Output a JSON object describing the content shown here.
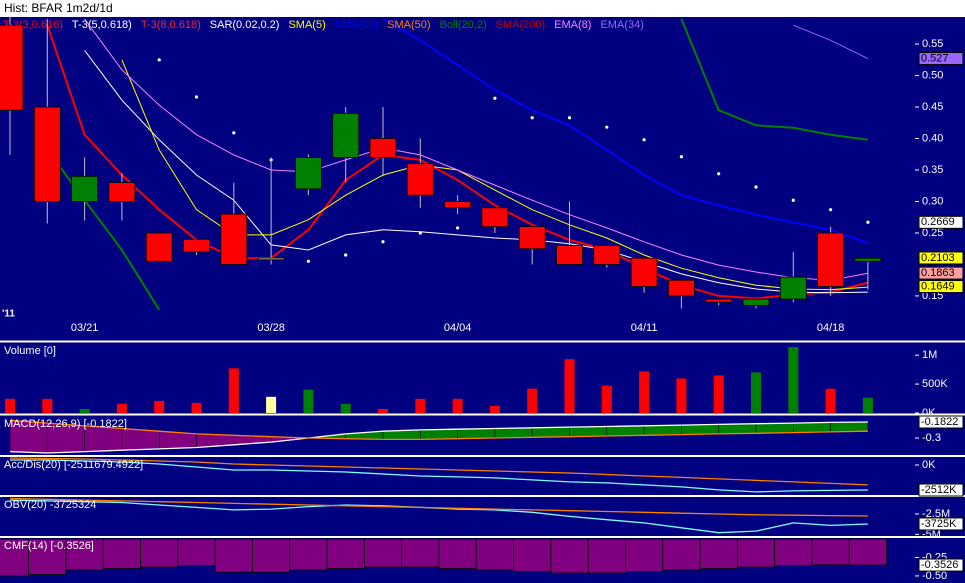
{
  "chart_data": [
    {
      "type": "candlestick",
      "title": "Hist: BFAR 1m2d/1d",
      "annotation": "'11",
      "categories": [
        null,
        null,
        "03/21",
        null,
        null,
        null,
        null,
        "03/28",
        null,
        null,
        null,
        null,
        "04/04",
        null,
        null,
        null,
        null,
        "04/11",
        null,
        null,
        null,
        null,
        "04/18",
        null
      ],
      "open": [
        0.58,
        0.45,
        0.3,
        0.33,
        0.25,
        0.24,
        0.28,
        0.21,
        0.32,
        0.37,
        0.4,
        0.36,
        0.3,
        0.29,
        0.26,
        0.23,
        0.23,
        0.21,
        0.175,
        0.145,
        0.135,
        0.145,
        0.25,
        0.205
      ],
      "high": [
        0.593,
        0.59,
        0.37,
        0.345,
        0.25,
        0.24,
        0.33,
        0.37,
        0.375,
        0.45,
        0.45,
        0.4,
        0.31,
        0.29,
        0.26,
        0.3,
        0.23,
        0.21,
        0.175,
        0.145,
        0.145,
        0.22,
        0.26,
        0.21
      ],
      "low": [
        0.374,
        0.265,
        0.27,
        0.27,
        0.205,
        0.215,
        0.2,
        0.2,
        0.31,
        0.33,
        0.34,
        0.29,
        0.28,
        0.25,
        0.2,
        0.2,
        0.195,
        0.155,
        0.13,
        0.135,
        0.13,
        0.14,
        0.15,
        0.16
      ],
      "close": [
        0.445,
        0.3,
        0.34,
        0.3,
        0.205,
        0.22,
        0.2,
        0.21,
        0.37,
        0.44,
        0.37,
        0.31,
        0.29,
        0.26,
        0.225,
        0.2,
        0.2,
        0.165,
        0.15,
        0.14,
        0.145,
        0.18,
        0.165,
        0.21
      ],
      "up_color": "#008000",
      "down_color": "#ff0000",
      "flat_color": "#ffffa0",
      "ylim": [
        0.08,
        0.593
      ],
      "yticks": [
        0.55,
        {
          "value": 0.5,
          "label": "0.50"
        },
        0.45,
        {
          "value": 0.4,
          "label": "0.40"
        },
        0.35,
        {
          "value": 0.3,
          "label": "0.30"
        },
        0.25,
        0.15
      ],
      "series": [
        {
          "name": "T-3(3,0.618)",
          "color": "#ff0000",
          "width": 2,
          "style": "line",
          "values": [
            null,
            0.58,
            0.406,
            0.342,
            0.287,
            0.239,
            0.21,
            0.21,
            0.255,
            0.334,
            0.374,
            0.366,
            0.334,
            0.294,
            0.263,
            0.239,
            0.223,
            0.194,
            0.167,
            0.15,
            0.146,
            0.152,
            0.156,
            0.171
          ]
        },
        {
          "name": "T-3(5,0.618)",
          "color": "#ffffff",
          "width": 1,
          "style": "line",
          "values": [
            null,
            null,
            0.54,
            0.461,
            0.398,
            0.342,
            0.302,
            0.231,
            0.223,
            0.247,
            0.255,
            0.252,
            0.247,
            0.242,
            0.239,
            0.233,
            0.223,
            0.204,
            0.185,
            0.171,
            0.161,
            0.156,
            0.155,
            0.156
          ]
        },
        {
          "name": "T-3(8,0.618)",
          "color": "#ff2020",
          "width": 1,
          "style": "line",
          "values": [
            null,
            null,
            null,
            null,
            null,
            null,
            null,
            null,
            null,
            null,
            null,
            null,
            null,
            null,
            null,
            null,
            null,
            null,
            null,
            null,
            null,
            null,
            null,
            null
          ]
        },
        {
          "name": "SAR(0.02,0.2)",
          "color": "#ffffff",
          "width": 1,
          "style": "dots",
          "values": [
            null,
            null,
            null,
            null,
            0.525,
            0.466,
            0.409,
            0.366,
            0.205,
            0.215,
            0.236,
            0.25,
            0.258,
            0.464,
            0.433,
            0.433,
            0.418,
            0.398,
            0.371,
            0.344,
            0.323,
            0.302,
            0.287,
            0.267
          ]
        },
        {
          "name": "SMA(5)",
          "color": "#ffff00",
          "width": 1,
          "style": "line",
          "values": [
            null,
            null,
            null,
            0.525,
            0.382,
            0.287,
            0.247,
            0.247,
            0.271,
            0.31,
            0.342,
            0.358,
            0.35,
            0.318,
            0.287,
            0.263,
            0.242,
            0.215,
            0.194,
            0.179,
            0.167,
            0.161,
            0.16,
            0.164
          ]
        },
        {
          "name": "SMA(20)",
          "color": "#0000ff",
          "width": 2,
          "style": "line",
          "values": [
            null,
            null,
            null,
            null,
            null,
            null,
            null,
            null,
            null,
            null,
            0.59,
            0.556,
            0.517,
            0.477,
            0.445,
            0.421,
            0.382,
            0.342,
            0.31,
            0.294,
            0.279,
            0.267,
            0.255,
            0.234
          ]
        },
        {
          "name": "SMA(50)",
          "color": "#ff8000",
          "width": 1,
          "style": "line",
          "values": [
            null,
            null,
            null,
            null,
            null,
            null,
            null,
            null,
            null,
            null,
            null,
            null,
            null,
            null,
            null,
            null,
            null,
            null,
            null,
            null,
            null,
            null,
            null,
            null
          ]
        },
        {
          "name": "Boll(20,2)",
          "color": "#008000",
          "width": 2,
          "style": "line",
          "values": [
            null,
            0.382,
            0.302,
            0.223,
            0.128,
            null,
            null,
            null,
            null,
            null,
            null,
            null,
            null,
            null,
            null,
            null,
            null,
            null,
            0.59,
            0.445,
            0.421,
            0.417,
            0.406,
            0.398
          ]
        },
        {
          "name": "SMA(200)",
          "color": "#c00000",
          "width": 1,
          "style": "line",
          "values": [
            null,
            null,
            null,
            null,
            null,
            null,
            null,
            null,
            null,
            null,
            null,
            null,
            null,
            null,
            null,
            null,
            null,
            null,
            null,
            null,
            null,
            null,
            null,
            null
          ]
        },
        {
          "name": "EMA(8)",
          "color": "#ff80ff",
          "width": 1,
          "style": "line",
          "values": [
            null,
            null,
            0.59,
            0.509,
            0.453,
            0.406,
            0.374,
            0.35,
            0.347,
            0.366,
            0.385,
            0.374,
            0.35,
            0.326,
            0.302,
            0.279,
            0.258,
            0.236,
            0.215,
            0.199,
            0.188,
            0.179,
            0.175,
            0.186
          ]
        },
        {
          "name": "EMA(34)",
          "color": "#9966ff",
          "width": 1,
          "style": "line",
          "values": [
            null,
            null,
            null,
            null,
            null,
            null,
            null,
            null,
            null,
            null,
            null,
            null,
            null,
            null,
            null,
            null,
            null,
            null,
            null,
            null,
            null,
            0.58,
            0.556,
            0.527
          ]
        }
      ],
      "tags": [
        {
          "value": 0.527,
          "color": "#9966ff"
        },
        {
          "value": 0.2669,
          "color": "#ffffff"
        },
        {
          "value": 0.2103,
          "color": "#ffff00"
        },
        {
          "value": 0.1863,
          "color": "#ffa0a0"
        },
        {
          "value": 0.1649,
          "color": "#ffff00"
        }
      ]
    },
    {
      "type": "bar",
      "title": "Volume [0]",
      "values": [
        245000,
        245000,
        70000,
        158000,
        210000,
        175000,
        772000,
        280000,
        404000,
        158000,
        70000,
        245000,
        245000,
        123000,
        421000,
        930000,
        474000,
        719000,
        596000,
        649000,
        702000,
        1140000,
        421000,
        263000
      ],
      "ylim": [
        0,
        1210000
      ],
      "yticks": [
        {
          "value": 1000000,
          "label": "1M"
        },
        {
          "value": 500000,
          "label": "500K"
        },
        {
          "value": 0,
          "label": "0K"
        }
      ]
    },
    {
      "type": "macd",
      "title": "MACD(12,26,9) [-0.1822]",
      "series": [
        {
          "color": "#ffffff",
          "values": [
            -0.4,
            -0.41,
            -0.4,
            -0.39,
            -0.38,
            -0.37,
            -0.35,
            -0.33,
            -0.3,
            -0.27,
            -0.25,
            -0.24,
            -0.235,
            -0.23,
            -0.225,
            -0.22,
            -0.215,
            -0.21,
            -0.205,
            -0.2,
            -0.195,
            -0.19,
            -0.185,
            -0.182
          ]
        },
        {
          "color": "#ff8000",
          "values": [
            -0.17,
            -0.19,
            -0.21,
            -0.23,
            -0.25,
            -0.27,
            -0.28,
            -0.29,
            -0.3,
            -0.305,
            -0.31,
            -0.31,
            -0.305,
            -0.3,
            -0.295,
            -0.29,
            -0.285,
            -0.28,
            -0.275,
            -0.27,
            -0.265,
            -0.26,
            -0.255,
            -0.25
          ]
        }
      ],
      "up_color": "#008000",
      "down_color": "#800080",
      "ylim": [
        -0.425,
        -0.138
      ],
      "yticks": [
        -0.3
      ],
      "tags": [
        {
          "value": -0.1822,
          "color": "#ffffff"
        }
      ]
    },
    {
      "type": "line",
      "title": "Acc/Dis(20) [-2511679.4922]",
      "series": [
        {
          "color": "#80ffff",
          "values": [
            500000,
            500000,
            400000,
            300000,
            100000,
            -200000,
            -500000,
            -500000,
            -600000,
            -700000,
            -900000,
            -1100000,
            -1200000,
            -1300000,
            -1500000,
            -1700000,
            -1800000,
            -2000000,
            -2200000,
            -2500000,
            -2700000,
            -2600000,
            -2550000,
            -2511679.4922
          ]
        },
        {
          "color": "#ff8000",
          "values": [
            700000,
            650000,
            600000,
            500000,
            400000,
            300000,
            100000,
            0,
            -100000,
            -200000,
            -300000,
            -400000,
            -500000,
            -600000,
            -700000,
            -800000,
            -950000,
            -1100000,
            -1250000,
            -1400000,
            -1550000,
            -1700000,
            -1850000,
            -2000000
          ]
        }
      ],
      "ylim": [
        -3010000,
        800000
      ],
      "yticks": [
        {
          "value": 0,
          "label": "0K"
        }
      ],
      "tags": [
        {
          "value": -2511679.4922,
          "label": "-2512K",
          "color": "#ffffff"
        }
      ]
    },
    {
      "type": "line",
      "title": "OBV(20) -3725324",
      "series": [
        {
          "color": "#80ffff",
          "values": [
            -800000,
            -900000,
            -1000000,
            -1100000,
            -1400000,
            -1700000,
            -2000000,
            -1900000,
            -1600000,
            -1400000,
            -1500000,
            -1700000,
            -1900000,
            -2000000,
            -2300000,
            -2800000,
            -3200000,
            -3600000,
            -4200000,
            -4800000,
            -4600000,
            -3600000,
            -3900000,
            -3725324
          ]
        },
        {
          "color": "#ff8000",
          "values": [
            -600000,
            -700000,
            -800000,
            -900000,
            -1000000,
            -1100000,
            -1200000,
            -1300000,
            -1400000,
            -1500000,
            -1600000,
            -1700000,
            -1800000,
            -1900000,
            -2000000,
            -2100000,
            -2200000,
            -2300000,
            -2400000,
            -2500000,
            -2600000,
            -2650000,
            -2700000,
            -2750000
          ]
        }
      ],
      "ylim": [
        -5200000,
        -420000
      ],
      "yticks": [
        {
          "value": -2500000,
          "label": "-2.5M"
        },
        {
          "value": -5000000,
          "label": "-5M"
        }
      ],
      "tags": [
        {
          "value": -3725324,
          "label": "-3725K",
          "color": "#ffffff"
        }
      ]
    },
    {
      "type": "area",
      "title": "CMF(14) [-0.3526]",
      "color": "#800080",
      "values": [
        -0.5,
        -0.48,
        -0.42,
        -0.4,
        -0.38,
        -0.36,
        -0.45,
        -0.45,
        -0.42,
        -0.4,
        -0.38,
        -0.38,
        -0.4,
        -0.42,
        -0.44,
        -0.46,
        -0.46,
        -0.44,
        -0.42,
        -0.4,
        -0.38,
        -0.36,
        -0.35,
        -0.3526
      ],
      "ylim": [
        -0.555,
        0.013
      ],
      "yticks": [
        -0.25,
        {
          "value": -0.5,
          "label": "-0.50"
        }
      ],
      "tags": [
        {
          "value": -0.3526,
          "color": "#ffffff"
        }
      ]
    }
  ]
}
